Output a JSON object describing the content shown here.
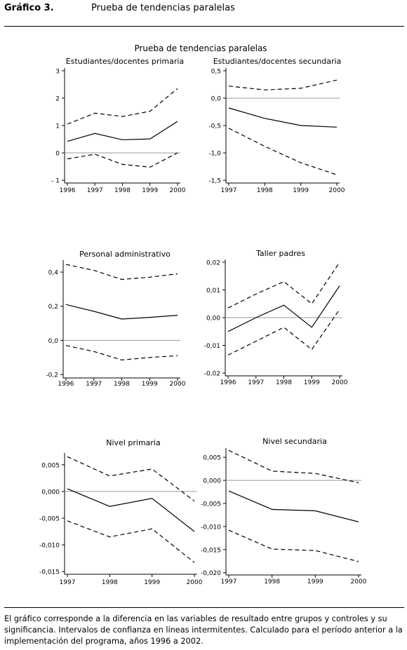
{
  "header": {
    "figure_label": "Gráfico 3.",
    "figure_title": "Prueba de tendencias paralelas"
  },
  "overall_title": "Prueba de tendencias paralelas",
  "caption": "El gráfico corresponde a la diferencia en las variables de resultado entre grupos y controles y su significancia. Intervalos de confianza en líneas intermitentes. Calculado para el período anterior a la implementación del programa, años 1996 a 2002.",
  "chart_data": [
    {
      "type": "line",
      "title": "Estudiantes/docentes primaria",
      "x": [
        1996,
        1997,
        1998,
        1999,
        2000
      ],
      "ylim": [
        -1.1,
        3.1
      ],
      "yticks": [
        3,
        2,
        1,
        0,
        -1
      ],
      "ytick_labels": [
        "3",
        "2",
        "1",
        "0",
        "- 1"
      ],
      "xtick_labels": [
        "1996",
        "1997",
        "1998",
        "1999",
        "2000"
      ],
      "series": [
        {
          "role": "estimate",
          "style": "solid",
          "values": [
            0.42,
            0.71,
            0.48,
            0.51,
            1.15
          ]
        },
        {
          "role": "upper",
          "style": "dashed",
          "values": [
            1.05,
            1.45,
            1.33,
            1.52,
            2.35
          ]
        },
        {
          "role": "lower",
          "style": "dashed",
          "values": [
            -0.22,
            -0.05,
            -0.42,
            -0.52,
            0.0
          ]
        }
      ]
    },
    {
      "type": "line",
      "title": "Estudiantes/docentes secundaria",
      "x": [
        1997,
        1998,
        1999,
        2000
      ],
      "ylim": [
        -1.55,
        0.55
      ],
      "yticks": [
        0.5,
        0.0,
        -0.5,
        -1.0,
        -1.5
      ],
      "ytick_labels": [
        "0,5",
        "0,0",
        "-0,5",
        "-1,0",
        "-1,5"
      ],
      "xtick_labels": [
        "1997",
        "1998",
        "1999",
        "2000"
      ],
      "series": [
        {
          "role": "estimate",
          "style": "solid",
          "values": [
            -0.18,
            -0.37,
            -0.5,
            -0.53
          ]
        },
        {
          "role": "upper",
          "style": "dashed",
          "values": [
            0.22,
            0.15,
            0.18,
            0.33
          ]
        },
        {
          "role": "lower",
          "style": "dashed",
          "values": [
            -0.55,
            -0.88,
            -1.18,
            -1.4
          ]
        }
      ]
    },
    {
      "type": "line",
      "title": "Personal administrativo",
      "x": [
        1996,
        1997,
        1998,
        1999,
        2000
      ],
      "ylim": [
        -0.22,
        0.47
      ],
      "yticks": [
        0.4,
        0.2,
        0.0,
        -0.2
      ],
      "ytick_labels": [
        "0,4",
        "0,2",
        "0,0",
        "-0,2"
      ],
      "xtick_labels": [
        "1996",
        "1997",
        "1998",
        "1999",
        "2000"
      ],
      "series": [
        {
          "role": "estimate",
          "style": "solid",
          "values": [
            0.21,
            0.17,
            0.125,
            0.135,
            0.147
          ]
        },
        {
          "role": "upper",
          "style": "dashed",
          "values": [
            0.445,
            0.41,
            0.357,
            0.37,
            0.39
          ]
        },
        {
          "role": "lower",
          "style": "dashed",
          "values": [
            -0.03,
            -0.065,
            -0.115,
            -0.1,
            -0.09
          ]
        }
      ]
    },
    {
      "type": "line",
      "title": "Taller padres",
      "x": [
        1996,
        1997,
        1998,
        1999,
        2000
      ],
      "ylim": [
        -0.021,
        0.021
      ],
      "yticks": [
        0.02,
        0.01,
        0.0,
        -0.01,
        -0.02
      ],
      "ytick_labels": [
        "0,02",
        "0,01",
        "0,00",
        "-0,01",
        "-0,02"
      ],
      "xtick_labels": [
        "1996",
        "1997",
        "1998",
        "1999",
        "2000"
      ],
      "series": [
        {
          "role": "estimate",
          "style": "solid",
          "values": [
            -0.005,
            0.0,
            0.0045,
            -0.0035,
            0.0115
          ]
        },
        {
          "role": "upper",
          "style": "dashed",
          "values": [
            0.0035,
            0.0085,
            0.013,
            0.005,
            0.02
          ]
        },
        {
          "role": "lower",
          "style": "dashed",
          "values": [
            -0.0135,
            -0.0085,
            -0.0035,
            -0.0115,
            0.003
          ]
        }
      ]
    },
    {
      "type": "line",
      "title": "Nivel primaria",
      "x": [
        1997,
        1998,
        1999,
        2000
      ],
      "ylim": [
        -0.0155,
        0.0072
      ],
      "yticks": [
        0.005,
        0.0,
        -0.005,
        -0.01,
        -0.015
      ],
      "ytick_labels": [
        "0,005",
        "0,000",
        "-0,005",
        "-0,010",
        "-0,015"
      ],
      "xtick_labels": [
        "1997",
        "1998",
        "1999",
        "2000"
      ],
      "series": [
        {
          "role": "estimate",
          "style": "solid",
          "values": [
            0.0005,
            -0.0028,
            -0.0013,
            -0.0075
          ]
        },
        {
          "role": "upper",
          "style": "dashed",
          "values": [
            0.0065,
            0.0029,
            0.0042,
            -0.0018
          ]
        },
        {
          "role": "lower",
          "style": "dashed",
          "values": [
            -0.0055,
            -0.0085,
            -0.007,
            -0.0133
          ]
        }
      ]
    },
    {
      "type": "line",
      "title": "Nivel secundaria",
      "x": [
        1997,
        1998,
        1999,
        2000
      ],
      "ylim": [
        -0.0205,
        0.007
      ],
      "yticks": [
        0.005,
        0.0,
        -0.005,
        -0.01,
        -0.015,
        -0.02
      ],
      "ytick_labels": [
        "0,005",
        "0,000",
        "-0,005",
        "-0,010",
        "-0,015",
        "-0,020"
      ],
      "xtick_labels": [
        "1997",
        "1998",
        "1999",
        "2000"
      ],
      "series": [
        {
          "role": "estimate",
          "style": "solid",
          "values": [
            -0.0023,
            -0.0063,
            -0.0066,
            -0.009
          ]
        },
        {
          "role": "upper",
          "style": "dashed",
          "values": [
            0.0065,
            0.002,
            0.0015,
            -0.0005
          ]
        },
        {
          "role": "lower",
          "style": "dashed",
          "values": [
            -0.0108,
            -0.0149,
            -0.0152,
            -0.0176
          ]
        }
      ]
    }
  ]
}
